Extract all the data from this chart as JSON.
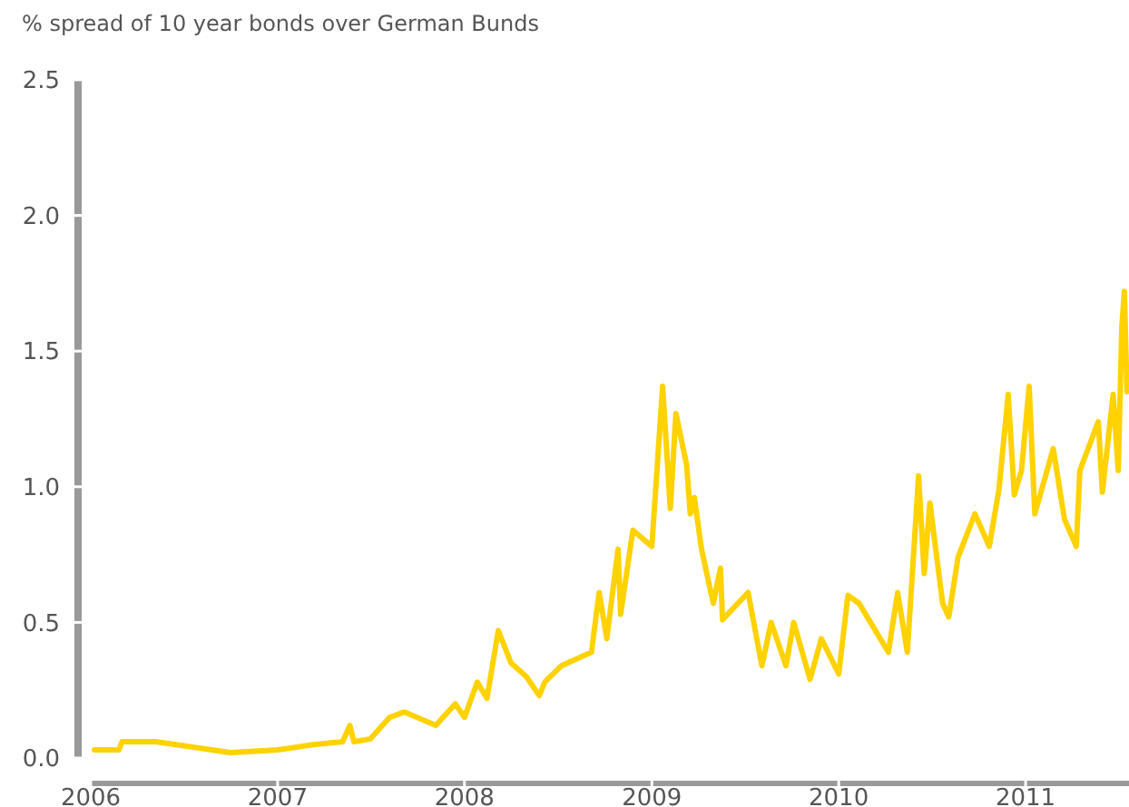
{
  "chart_data": {
    "type": "line",
    "title": "% spread of 10 year bonds over German Bunds",
    "x": [
      "2006-01-08",
      "2006-02-25",
      "2006-03-03",
      "2006-05-08",
      "2006-07-20",
      "2006-10-01",
      "2007-01-01",
      "2007-03-15",
      "2007-05-08",
      "2007-05-22",
      "2007-05-30",
      "2007-07-01",
      "2007-08-08",
      "2007-09-06",
      "2007-11-06",
      "2007-12-14",
      "2008-01-01",
      "2008-01-26",
      "2008-02-14",
      "2008-03-07",
      "2008-04-01",
      "2008-05-01",
      "2008-05-26",
      "2008-06-06",
      "2008-07-08",
      "2008-09-05",
      "2008-09-20",
      "2008-10-05",
      "2008-10-27",
      "2008-11-01",
      "2008-11-25",
      "2009-01-01",
      "2009-01-22",
      "2009-02-06",
      "2009-02-17",
      "2009-03-10",
      "2009-03-17",
      "2009-03-25",
      "2009-04-08",
      "2009-05-01",
      "2009-05-15",
      "2009-05-19",
      "2009-07-08",
      "2009-08-04",
      "2009-08-22",
      "2009-09-20",
      "2009-10-05",
      "2009-11-06",
      "2009-11-28",
      "2010-01-01",
      "2010-01-19",
      "2010-02-10",
      "2010-03-04",
      "2010-04-08",
      "2010-04-26",
      "2010-05-15",
      "2010-06-06",
      "2010-06-17",
      "2010-06-28",
      "2010-07-23",
      "2010-08-04",
      "2010-08-22",
      "2010-09-24",
      "2010-10-22",
      "2010-11-10",
      "2010-11-28",
      "2010-12-10",
      "2010-12-24",
      "2011-01-08",
      "2011-01-19",
      "2011-02-24",
      "2011-03-18",
      "2011-04-10",
      "2011-04-17",
      "2011-05-23",
      "2011-05-31",
      "2011-06-21",
      "2011-07-01",
      "2011-07-08",
      "2011-07-13",
      "2011-07-18"
    ],
    "series": [
      {
        "color": "#ffd200",
        "values": [
          0.03,
          0.03,
          0.06,
          0.06,
          0.04,
          0.02,
          0.03,
          0.05,
          0.06,
          0.12,
          0.06,
          0.07,
          0.15,
          0.17,
          0.12,
          0.2,
          0.15,
          0.28,
          0.22,
          0.47,
          0.35,
          0.3,
          0.23,
          0.28,
          0.34,
          0.39,
          0.61,
          0.44,
          0.77,
          0.53,
          0.84,
          0.78,
          1.37,
          0.92,
          1.27,
          1.08,
          0.9,
          0.96,
          0.77,
          0.57,
          0.7,
          0.51,
          0.61,
          0.34,
          0.5,
          0.34,
          0.5,
          0.29,
          0.44,
          0.31,
          0.6,
          0.57,
          0.5,
          0.39,
          0.61,
          0.39,
          1.04,
          0.68,
          0.94,
          0.57,
          0.52,
          0.74,
          0.9,
          0.78,
          0.99,
          1.34,
          0.97,
          1.06,
          1.37,
          0.9,
          1.14,
          0.88,
          0.78,
          1.06,
          1.24,
          0.98,
          1.34,
          1.06,
          1.59,
          1.72,
          1.35
        ]
      }
    ],
    "xlim": [
      "2006-01-01",
      "2011-07-22"
    ],
    "xticks": [
      {
        "value": "2006-01-01",
        "label": "2006"
      },
      {
        "value": "2007-01-01",
        "label": "2007"
      },
      {
        "value": "2008-01-01",
        "label": "2008"
      },
      {
        "value": "2009-01-01",
        "label": "2009"
      },
      {
        "value": "2010-01-01",
        "label": "2010"
      },
      {
        "value": "2011-01-01",
        "label": "2011"
      }
    ],
    "ylim": [
      0,
      2.5
    ],
    "yticks": [
      {
        "value": 0,
        "label": "0.0"
      },
      {
        "value": 0.5,
        "label": "0.5"
      },
      {
        "value": 1,
        "label": "1.0"
      },
      {
        "value": 1.5,
        "label": "1.5"
      },
      {
        "value": 2,
        "label": "2.0"
      },
      {
        "value": 2.5,
        "label": "2.5"
      }
    ],
    "grid": false,
    "line_style": "solid",
    "marker": "none"
  }
}
